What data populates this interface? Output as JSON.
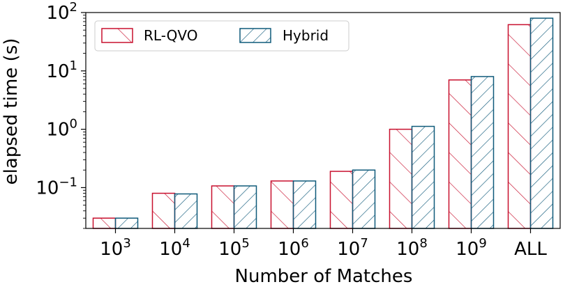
{
  "chart_data": {
    "type": "bar",
    "title": "",
    "xlabel": "Number of Matches",
    "ylabel": "elapsed time (s)",
    "yscale": "log",
    "ylim": [
      0.02,
      100
    ],
    "categories": [
      {
        "base": "10",
        "exp": "3"
      },
      {
        "base": "10",
        "exp": "4"
      },
      {
        "base": "10",
        "exp": "5"
      },
      {
        "base": "10",
        "exp": "6"
      },
      {
        "base": "10",
        "exp": "7"
      },
      {
        "base": "10",
        "exp": "8"
      },
      {
        "base": "10",
        "exp": "9"
      },
      {
        "base": "ALL",
        "exp": ""
      }
    ],
    "yticks": [
      {
        "base": "10",
        "exp": "−1",
        "value": 0.1
      },
      {
        "base": "10",
        "exp": "0",
        "value": 1
      },
      {
        "base": "10",
        "exp": "1",
        "value": 10
      },
      {
        "base": "10",
        "exp": "2",
        "value": 100
      }
    ],
    "series": [
      {
        "name": "RL-QVO",
        "color": "#c8102e",
        "hatch": "backslash",
        "values": [
          0.03,
          0.08,
          0.107,
          0.13,
          0.19,
          1.0,
          7.0,
          62
        ]
      },
      {
        "name": "Hybrid",
        "color": "#0f5a7a",
        "hatch": "slash",
        "values": [
          0.03,
          0.078,
          0.107,
          0.13,
          0.2,
          1.12,
          8.0,
          80
        ]
      }
    ],
    "legend": {
      "location": "top-left",
      "labels": [
        "RL-QVO",
        "Hybrid"
      ]
    }
  }
}
